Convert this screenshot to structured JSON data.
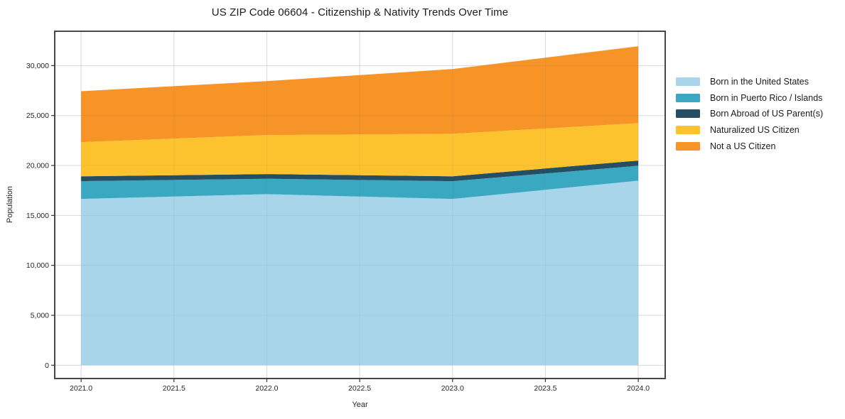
{
  "chart_data": {
    "type": "area",
    "stacked": true,
    "title": "US ZIP Code 06604 - Citizenship & Nativity Trends Over Time",
    "xlabel": "Year",
    "ylabel": "Population",
    "x": [
      2021,
      2022,
      2023,
      2024
    ],
    "series": [
      {
        "name": "Born in the United States",
        "color": "#a8d5ea",
        "values": [
          16650,
          17130,
          16650,
          18480
        ]
      },
      {
        "name": "Born in Puerto Rico / Islands",
        "color": "#39a8c0",
        "values": [
          1780,
          1540,
          1780,
          1490
        ]
      },
      {
        "name": "Born Abroad of US Parent(s)",
        "color": "#254e63",
        "values": [
          480,
          470,
          480,
          520
        ]
      },
      {
        "name": "Naturalized US Citizen",
        "color": "#fdc32e",
        "values": [
          3430,
          3910,
          4260,
          3750
        ]
      },
      {
        "name": "Not a US Citizen",
        "color": "#f79428",
        "values": [
          5090,
          5400,
          6490,
          7700
        ]
      }
    ],
    "totals": [
      27430,
      28450,
      29660,
      31940
    ],
    "xlim": [
      2020.858,
      2024.145
    ],
    "ylim": [
      -1330,
      33440
    ],
    "xtick_values": [
      2021.0,
      2021.5,
      2022.0,
      2022.5,
      2023.0,
      2023.5,
      2024.0
    ],
    "xtick_labels": [
      "2021.0",
      "2021.5",
      "2022.0",
      "2022.5",
      "2023.0",
      "2023.5",
      "2024.0"
    ],
    "ytick_values": [
      0,
      5000,
      10000,
      15000,
      20000,
      25000,
      30000
    ],
    "ytick_labels": [
      "0",
      "5,000",
      "10,000",
      "15,000",
      "20,000",
      "25,000",
      "30,000"
    ],
    "grid": true,
    "legend_position": "right-outside",
    "colors": {
      "background": "#ffffff",
      "grid": "#e7e7e7",
      "grid_overlay": "rgba(110,110,110,0.10)",
      "spine": "#333333",
      "text": "#262626",
      "title_text": "#1a1a1a"
    }
  }
}
